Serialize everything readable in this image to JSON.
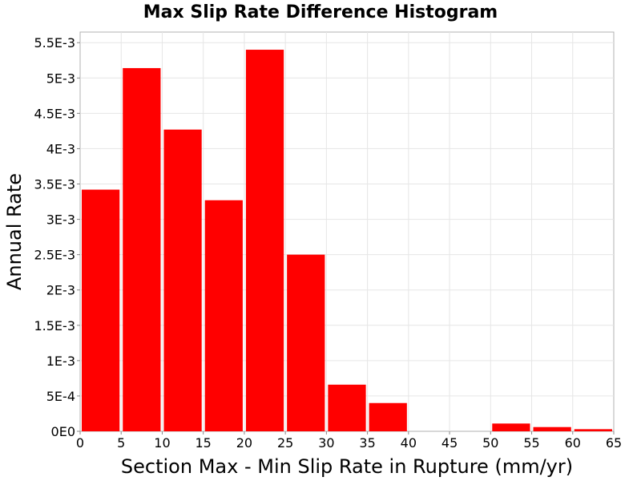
{
  "chart_data": {
    "type": "bar",
    "title": "Max Slip Rate Difference Histogram",
    "xlabel": "Section Max - Min Slip Rate in Rupture (mm/yr)",
    "ylabel": "Annual Rate",
    "xlim": [
      0,
      65
    ],
    "ylim": [
      0,
      0.00565
    ],
    "x_ticks": [
      0,
      5,
      10,
      15,
      20,
      25,
      30,
      35,
      40,
      45,
      50,
      55,
      60,
      65
    ],
    "x_tick_labels": [
      "0",
      "5",
      "10",
      "15",
      "20",
      "25",
      "30",
      "35",
      "40",
      "45",
      "50",
      "55",
      "60",
      "65"
    ],
    "y_ticks": [
      0,
      0.0005,
      0.001,
      0.0015,
      0.002,
      0.0025,
      0.003,
      0.0035,
      0.004,
      0.0045,
      0.005,
      0.0055
    ],
    "y_tick_labels": [
      "0E0",
      "5E-4",
      "1E-3",
      "1.5E-3",
      "2E-3",
      "2.5E-3",
      "3E-3",
      "3.5E-3",
      "4E-3",
      "4.5E-3",
      "5E-3",
      "5.5E-3"
    ],
    "bin_width": 5,
    "bins": [
      {
        "x0": 0,
        "x1": 5,
        "value": 0.00342
      },
      {
        "x0": 5,
        "x1": 10,
        "value": 0.00514
      },
      {
        "x0": 10,
        "x1": 15,
        "value": 0.00427
      },
      {
        "x0": 15,
        "x1": 20,
        "value": 0.00327
      },
      {
        "x0": 20,
        "x1": 25,
        "value": 0.0054
      },
      {
        "x0": 25,
        "x1": 30,
        "value": 0.0025
      },
      {
        "x0": 30,
        "x1": 35,
        "value": 0.00066
      },
      {
        "x0": 35,
        "x1": 40,
        "value": 0.0004
      },
      {
        "x0": 40,
        "x1": 45,
        "value": 0.0
      },
      {
        "x0": 45,
        "x1": 50,
        "value": 0.0
      },
      {
        "x0": 50,
        "x1": 55,
        "value": 0.00011
      },
      {
        "x0": 55,
        "x1": 60,
        "value": 6e-05
      },
      {
        "x0": 60,
        "x1": 65,
        "value": 3e-05
      }
    ],
    "bar_color": "#ff0000",
    "grid": true,
    "legend": "none"
  }
}
